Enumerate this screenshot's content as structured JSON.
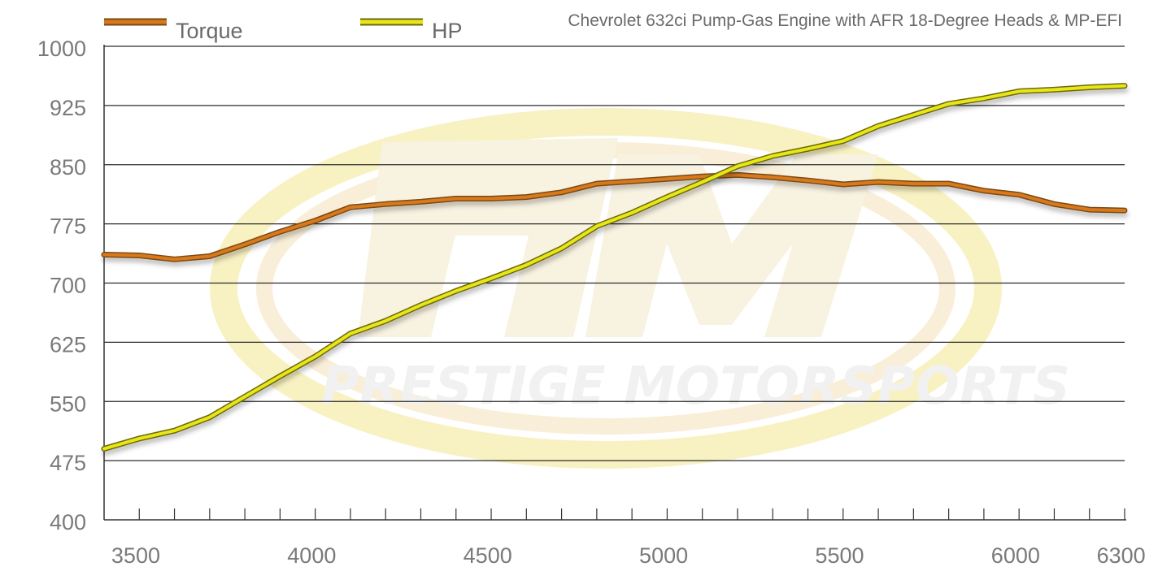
{
  "chart_data": {
    "type": "line",
    "title": "Chevrolet 632ci Pump-Gas Engine with AFR 18-Degree Heads & MP-EFI",
    "xlabel": "",
    "ylabel": "",
    "xlim": [
      3410,
      6310
    ],
    "ylim": [
      400,
      1000
    ],
    "y_ticks": [
      400,
      475,
      550,
      625,
      700,
      775,
      850,
      925,
      1000
    ],
    "x_ticks": [
      3500,
      4000,
      4500,
      5000,
      5500,
      6000,
      6300
    ],
    "grid": "horizontal",
    "legend_position": "top",
    "series": [
      {
        "name": "Torque",
        "color": "#d8791f",
        "x": [
          3410,
          3510,
          3610,
          3710,
          3810,
          3910,
          4010,
          4110,
          4210,
          4310,
          4410,
          4510,
          4610,
          4710,
          4810,
          4910,
          5010,
          5110,
          5210,
          5310,
          5410,
          5510,
          5610,
          5710,
          5810,
          5910,
          6010,
          6110,
          6210,
          6310
        ],
        "values": [
          736,
          735,
          730,
          734,
          749,
          765,
          779,
          796,
          800,
          803,
          807,
          807,
          809,
          815,
          826,
          829,
          832,
          835,
          837,
          834,
          830,
          825,
          828,
          826,
          826,
          817,
          812,
          800,
          793,
          792
        ]
      },
      {
        "name": "HP",
        "color": "#e9e619",
        "x": [
          3410,
          3510,
          3610,
          3710,
          3810,
          3910,
          4010,
          4110,
          4210,
          4310,
          4410,
          4510,
          4610,
          4710,
          4810,
          4910,
          5010,
          5110,
          5210,
          5310,
          5410,
          5510,
          5610,
          5710,
          5810,
          5910,
          6010,
          6110,
          6210,
          6310
        ],
        "values": [
          490,
          503,
          513,
          530,
          556,
          582,
          607,
          636,
          652,
          672,
          690,
          706,
          723,
          744,
          772,
          789,
          809,
          828,
          848,
          861,
          870,
          880,
          899,
          913,
          927,
          934,
          943,
          945,
          948,
          950
        ]
      }
    ]
  },
  "watermark": {
    "text": "PRESTIGE MOTORSPORTS",
    "colors": {
      "outer": "#f4e9a8",
      "inner": "#f6e7c6",
      "text": "#eeeeee"
    }
  }
}
